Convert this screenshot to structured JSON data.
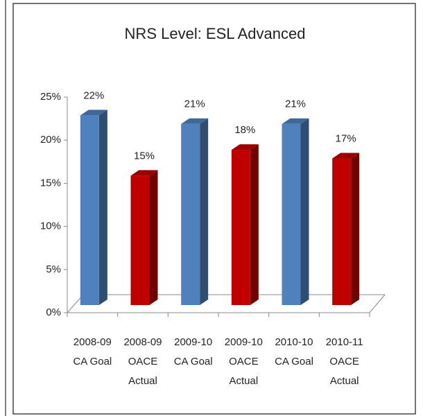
{
  "chart_data": {
    "type": "bar3d",
    "title": "NRS Level: ESL Advanced",
    "categories": [
      [
        "2008-09",
        "CA Goal"
      ],
      [
        "2008-09",
        "OACE",
        "Actual"
      ],
      [
        "2009-10",
        "CA Goal"
      ],
      [
        "2009-10",
        "OACE",
        "Actual"
      ],
      [
        "2010-10",
        "CA Goal"
      ],
      [
        "2010-11",
        "OACE",
        "Actual"
      ]
    ],
    "values": [
      22,
      15,
      21,
      18,
      21,
      17
    ],
    "value_labels": [
      "22%",
      "15%",
      "21%",
      "18%",
      "21%",
      "17%"
    ],
    "colors": [
      "#4f81bd",
      "#c00000",
      "#4f81bd",
      "#c00000",
      "#4f81bd",
      "#c00000"
    ],
    "ylim": [
      0,
      25
    ],
    "yticks": [
      {
        "value": 0,
        "label": "0%"
      },
      {
        "value": 5,
        "label": "5%"
      },
      {
        "value": 10,
        "label": "10%"
      },
      {
        "value": 15,
        "label": "15%"
      },
      {
        "value": 20,
        "label": "20%"
      },
      {
        "value": 25,
        "label": "25%"
      }
    ]
  }
}
